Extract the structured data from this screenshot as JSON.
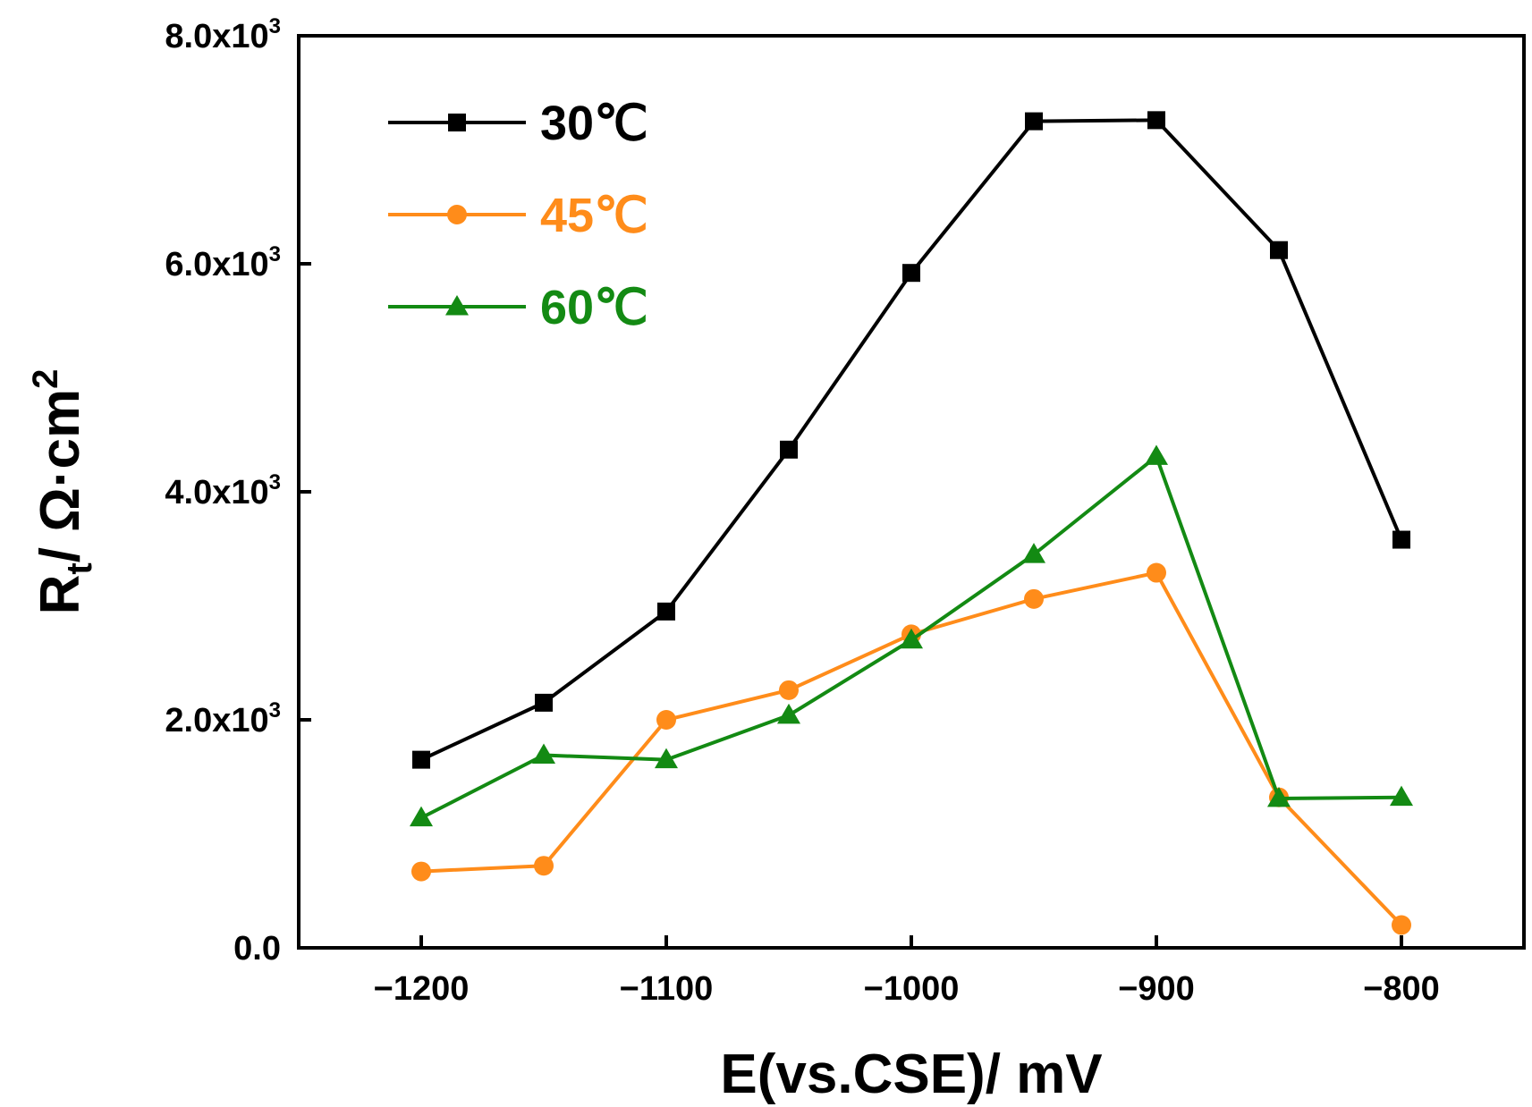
{
  "chart_data": {
    "type": "line",
    "title": "",
    "xlabel": "E(vs.CSE)/ mV",
    "ylabel": {
      "base": "R",
      "sub": "t",
      "rest": "/ Ω·cm",
      "sup": "2"
    },
    "xlim": [
      -1250,
      -750
    ],
    "ylim": [
      0,
      8000
    ],
    "xticks": [
      {
        "value": -1200,
        "label": "−1200"
      },
      {
        "value": -1100,
        "label": "−1100"
      },
      {
        "value": -1000,
        "label": "−1000"
      },
      {
        "value": -900,
        "label": "−900"
      },
      {
        "value": -800,
        "label": "−800"
      }
    ],
    "yticks": [
      {
        "value": 0,
        "label": "0.0",
        "exp": ""
      },
      {
        "value": 2000,
        "label": "2.0x10",
        "exp": "3"
      },
      {
        "value": 4000,
        "label": "4.0x10",
        "exp": "3"
      },
      {
        "value": 6000,
        "label": "6.0x10",
        "exp": "3"
      },
      {
        "value": 8000,
        "label": "8.0x10",
        "exp": "3"
      }
    ],
    "x": [
      -1200,
      -1150,
      -1100,
      -1050,
      -1000,
      -950,
      -900,
      -850,
      -800
    ],
    "legend_position": "top-left",
    "grid": false,
    "series": [
      {
        "name": "30℃",
        "color": "#000000",
        "marker": "square",
        "values": [
          1650,
          2150,
          2950,
          4370,
          5920,
          7250,
          7260,
          6120,
          3580
        ]
      },
      {
        "name": "45℃",
        "color": "#ff8c1a",
        "marker": "circle",
        "values": [
          670,
          720,
          2000,
          2260,
          2750,
          3060,
          3290,
          1320,
          200
        ]
      },
      {
        "name": "60℃",
        "color": "#138a13",
        "marker": "triangle",
        "values": [
          1140,
          1690,
          1650,
          2040,
          2700,
          3450,
          4310,
          1310,
          1320
        ]
      }
    ]
  }
}
